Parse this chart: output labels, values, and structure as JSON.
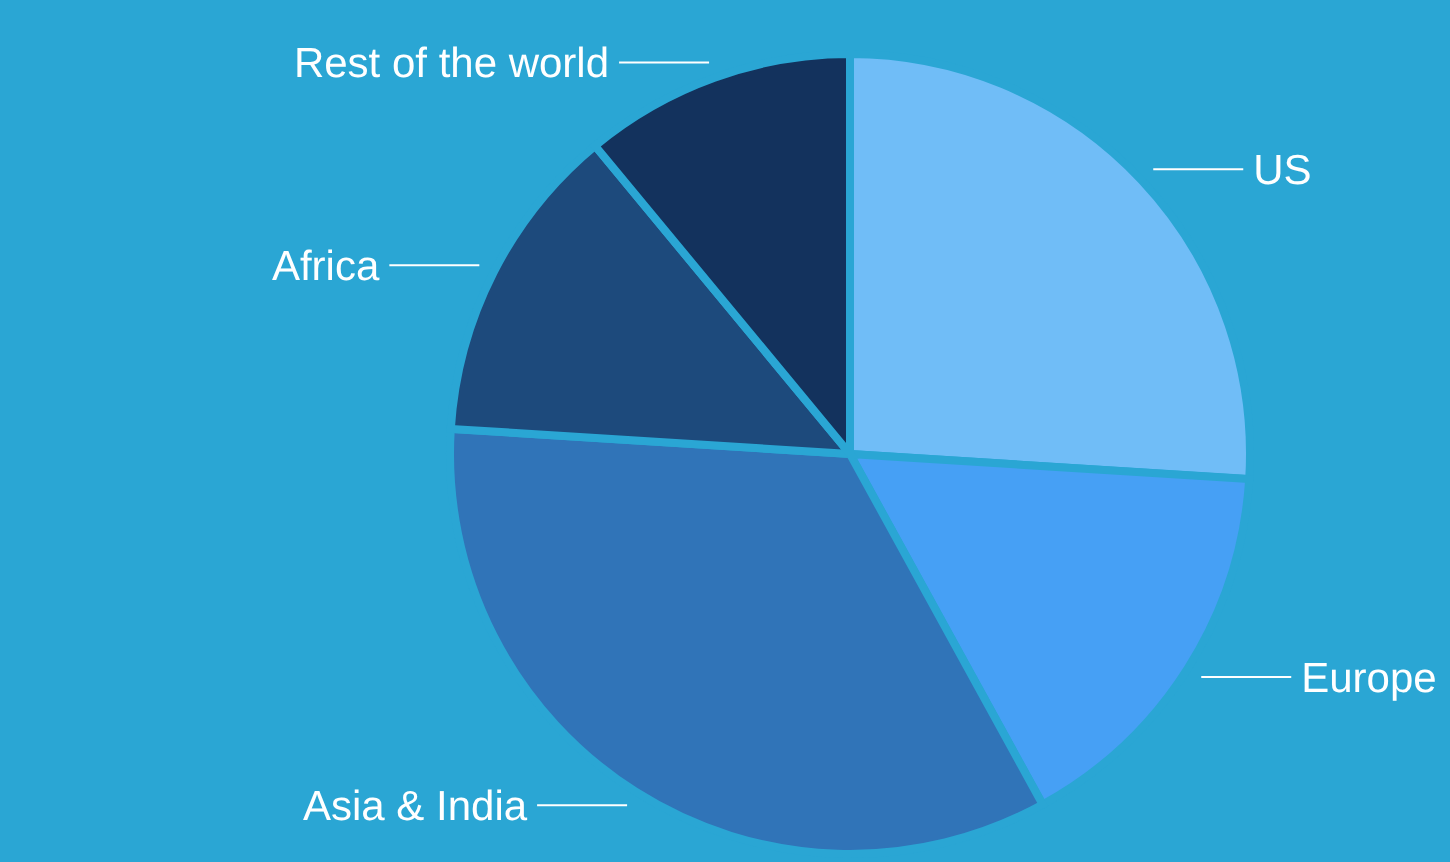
{
  "chart_data": {
    "type": "pie",
    "categories": [
      "US",
      "Europe",
      "Asia & India",
      "Africa",
      "Rest of the world"
    ],
    "values": [
      26,
      16,
      34,
      13,
      11
    ],
    "colors": [
      "#70bdf7",
      "#46a0f5",
      "#3074b8",
      "#1d4a7c",
      "#13325d"
    ],
    "legend": false
  }
}
